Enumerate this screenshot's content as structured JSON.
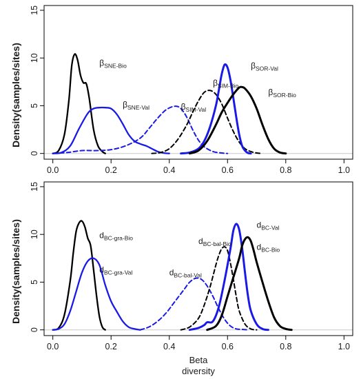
{
  "figure": {
    "ylabel": "Density(samples/sites)",
    "xlabel_line1": "Beta",
    "xlabel_line2": "diversity"
  },
  "chart_data": [
    {
      "type": "line",
      "panel": "top",
      "xlim": [
        -0.03,
        1.03
      ],
      "ylim": [
        -0.6,
        15.5
      ],
      "xticks": [
        "0.0",
        "0.2",
        "0.4",
        "0.6",
        "0.8",
        "1.0"
      ],
      "xtick_values": [
        0.0,
        0.2,
        0.4,
        0.6,
        0.8,
        1.0
      ],
      "yticks": [
        "0",
        "5",
        "10",
        "15"
      ],
      "ytick_values": [
        0,
        5,
        10,
        15
      ],
      "grid": false,
      "baseline": 0,
      "series": [
        {
          "name": "βSNE-Bio",
          "label_base": "β",
          "label_sub": "SNE-Bio",
          "color": "#000000",
          "dash": "solid",
          "width": 2.3,
          "x": [
            0.0,
            0.02,
            0.04,
            0.055,
            0.065,
            0.075,
            0.085,
            0.095,
            0.105,
            0.115,
            0.125,
            0.14,
            0.155,
            0.17,
            0.18
          ],
          "y": [
            0,
            0.3,
            2.0,
            5.5,
            9.2,
            10.4,
            9.8,
            8.2,
            7.4,
            7.3,
            5.8,
            2.5,
            0.8,
            0.2,
            0
          ]
        },
        {
          "name": "βSNE-Val",
          "label_base": "β",
          "label_sub": "SNE-Val",
          "color": "#1a1ae6",
          "dash": "solid",
          "width": 2.3,
          "x": [
            0.0,
            0.03,
            0.06,
            0.09,
            0.12,
            0.14,
            0.16,
            0.18,
            0.2,
            0.22,
            0.24,
            0.26,
            0.28,
            0.3,
            0.32,
            0.34,
            0.36,
            0.38,
            0.4
          ],
          "y": [
            0,
            0.1,
            0.8,
            2.6,
            4.2,
            4.7,
            4.8,
            4.8,
            4.7,
            4.1,
            3.1,
            2.0,
            1.3,
            1.0,
            0.8,
            0.5,
            0.2,
            0.05,
            0
          ]
        },
        {
          "name": "βSIM-Val",
          "label_base": "β",
          "label_sub": "SIM-Val",
          "color": "#1a1ae6",
          "dash": "dashed",
          "width": 2.0,
          "x": [
            0.0,
            0.05,
            0.1,
            0.15,
            0.2,
            0.25,
            0.3,
            0.33,
            0.36,
            0.39,
            0.42,
            0.44,
            0.46,
            0.48,
            0.5,
            0.52,
            0.55,
            0.58,
            0.6
          ],
          "y": [
            0,
            0.1,
            0.3,
            0.3,
            0.4,
            0.8,
            1.6,
            2.6,
            3.7,
            4.6,
            4.95,
            4.7,
            3.8,
            2.5,
            1.4,
            0.7,
            0.2,
            0.05,
            0
          ]
        },
        {
          "name": "βSIM-Bio",
          "label_base": "β",
          "label_sub": "SIM-Bio",
          "color": "#000000",
          "dash": "dashed",
          "width": 2.0,
          "x": [
            0.34,
            0.37,
            0.4,
            0.43,
            0.46,
            0.48,
            0.5,
            0.52,
            0.54,
            0.56,
            0.58,
            0.6,
            0.62,
            0.64,
            0.66,
            0.68,
            0.7,
            0.72
          ],
          "y": [
            0,
            0.1,
            0.5,
            1.5,
            3.0,
            4.3,
            5.5,
            6.4,
            6.6,
            6.2,
            5.2,
            3.7,
            2.3,
            1.2,
            0.5,
            0.2,
            0.05,
            0
          ]
        },
        {
          "name": "βSOR-Val",
          "label_base": "β",
          "label_sub": "SOR-Val",
          "color": "#1a1ae6",
          "dash": "solid",
          "width": 3.0,
          "x": [
            0.44,
            0.47,
            0.5,
            0.52,
            0.54,
            0.56,
            0.57,
            0.58,
            0.59,
            0.6,
            0.61,
            0.62,
            0.63,
            0.64,
            0.65,
            0.66,
            0.67,
            0.68
          ],
          "y": [
            0,
            0.1,
            0.5,
            1.3,
            2.8,
            5.0,
            6.6,
            8.3,
            9.3,
            9.0,
            7.7,
            5.8,
            3.8,
            2.0,
            0.8,
            0.3,
            0.05,
            0
          ]
        },
        {
          "name": "βSOR-Bio",
          "label_base": "β",
          "label_sub": "SOR-Bio",
          "color": "#000000",
          "dash": "solid",
          "width": 3.0,
          "x": [
            0.47,
            0.5,
            0.53,
            0.56,
            0.58,
            0.6,
            0.62,
            0.64,
            0.65,
            0.66,
            0.68,
            0.7,
            0.72,
            0.74,
            0.76,
            0.78,
            0.8
          ],
          "y": [
            0,
            0.3,
            1.3,
            3.0,
            4.3,
            5.3,
            6.2,
            6.9,
            6.95,
            6.8,
            6.0,
            4.7,
            3.0,
            1.5,
            0.5,
            0.1,
            0
          ]
        }
      ],
      "annotations": [
        {
          "series": "βSNE-Bio",
          "x": 0.16,
          "y": 9.2
        },
        {
          "series": "βSNE-Val",
          "x": 0.24,
          "y": 4.8
        },
        {
          "series": "βSIM-Val",
          "x": 0.44,
          "y": 4.6
        },
        {
          "series": "βSIM-Bio",
          "x": 0.55,
          "y": 7.1
        },
        {
          "series": "βSOR-Val",
          "x": 0.68,
          "y": 8.9
        },
        {
          "series": "βSOR-Bio",
          "x": 0.74,
          "y": 6.1
        }
      ]
    },
    {
      "type": "line",
      "panel": "bottom",
      "xlim": [
        -0.03,
        1.03
      ],
      "ylim": [
        -0.6,
        15.5
      ],
      "xticks": [
        "0.0",
        "0.2",
        "0.4",
        "0.6",
        "0.8",
        "1.0"
      ],
      "xtick_values": [
        0.0,
        0.2,
        0.4,
        0.6,
        0.8,
        1.0
      ],
      "yticks": [
        "0",
        "5",
        "10",
        "15"
      ],
      "ytick_values": [
        0,
        5,
        10,
        15
      ],
      "grid": false,
      "baseline": 0,
      "series": [
        {
          "name": "dBC-gra-Bio",
          "label_base": "d",
          "label_sub": "BC-gra-Bio",
          "color": "#000000",
          "dash": "solid",
          "width": 2.3,
          "x": [
            0.0,
            0.02,
            0.04,
            0.06,
            0.07,
            0.08,
            0.09,
            0.1,
            0.11,
            0.12,
            0.13,
            0.14,
            0.15,
            0.16,
            0.17,
            0.18
          ],
          "y": [
            0,
            0.2,
            1.6,
            5.2,
            8.0,
            10.3,
            11.2,
            11.4,
            10.8,
            9.6,
            8.8,
            6.3,
            3.6,
            1.4,
            0.3,
            0
          ]
        },
        {
          "name": "dBC-gra-Val",
          "label_base": "d",
          "label_sub": "BC-gra-Val",
          "color": "#1a1ae6",
          "dash": "solid",
          "width": 2.3,
          "x": [
            0.0,
            0.02,
            0.04,
            0.06,
            0.08,
            0.1,
            0.12,
            0.14,
            0.16,
            0.18,
            0.2,
            0.22,
            0.24,
            0.26,
            0.28,
            0.3
          ],
          "y": [
            0,
            0.1,
            0.6,
            2.0,
            4.0,
            6.0,
            7.2,
            7.5,
            6.8,
            4.7,
            3.0,
            1.9,
            0.9,
            0.3,
            0.1,
            0
          ]
        },
        {
          "name": "dBC-bal-Val",
          "label_base": "d",
          "label_sub": "BC-bal-Val",
          "color": "#1a1ae6",
          "dash": "dashed",
          "width": 2.0,
          "x": [
            0.3,
            0.33,
            0.36,
            0.39,
            0.42,
            0.45,
            0.47,
            0.49,
            0.51,
            0.53,
            0.55,
            0.57,
            0.59,
            0.61,
            0.63,
            0.65,
            0.67
          ],
          "y": [
            0,
            0.3,
            0.9,
            1.8,
            3.0,
            4.2,
            5.0,
            5.4,
            5.3,
            4.6,
            3.5,
            2.2,
            1.1,
            0.4,
            0.1,
            0.05,
            0
          ]
        },
        {
          "name": "dBC-bal-Bio",
          "label_base": "d",
          "label_sub": "BC-bal-Bio",
          "color": "#000000",
          "dash": "dashed",
          "width": 2.0,
          "x": [
            0.44,
            0.47,
            0.5,
            0.52,
            0.54,
            0.56,
            0.57,
            0.58,
            0.59,
            0.6,
            0.61,
            0.62,
            0.63,
            0.64,
            0.66,
            0.68,
            0.7
          ],
          "y": [
            0,
            0.3,
            1.2,
            2.6,
            4.5,
            6.8,
            7.8,
            8.5,
            8.7,
            8.3,
            7.0,
            5.3,
            3.5,
            2.0,
            0.6,
            0.1,
            0
          ]
        },
        {
          "name": "dBC-Val",
          "label_base": "d",
          "label_sub": "BC-Val",
          "color": "#1a1ae6",
          "dash": "solid",
          "width": 3.0,
          "x": [
            0.47,
            0.5,
            0.52,
            0.53,
            0.55,
            0.57,
            0.59,
            0.61,
            0.62,
            0.63,
            0.64,
            0.65,
            0.66,
            0.67,
            0.68,
            0.7,
            0.72,
            0.74
          ],
          "y": [
            0,
            0.2,
            0.5,
            0.8,
            0.9,
            2.4,
            5.2,
            8.5,
            10.4,
            11.1,
            10.5,
            8.6,
            6.0,
            3.6,
            2.0,
            0.6,
            0.1,
            0
          ]
        },
        {
          "name": "dBC-Bio",
          "label_base": "d",
          "label_sub": "BC-Bio",
          "color": "#000000",
          "dash": "solid",
          "width": 3.0,
          "x": [
            0.53,
            0.56,
            0.58,
            0.6,
            0.62,
            0.64,
            0.65,
            0.66,
            0.67,
            0.68,
            0.69,
            0.7,
            0.72,
            0.74,
            0.76,
            0.78,
            0.8,
            0.82
          ],
          "y": [
            0,
            0.4,
            1.5,
            3.5,
            5.5,
            7.5,
            8.8,
            9.5,
            9.7,
            9.3,
            8.3,
            7.1,
            5.0,
            3.0,
            1.3,
            0.4,
            0.1,
            0
          ]
        }
      ],
      "annotations": [
        {
          "series": "dBC-gra-Bio",
          "x": 0.16,
          "y": 9.6
        },
        {
          "series": "dBC-gra-Val",
          "x": 0.16,
          "y": 6.0
        },
        {
          "series": "dBC-bal-Val",
          "x": 0.4,
          "y": 5.7
        },
        {
          "series": "dBC-bal-Bio",
          "x": 0.5,
          "y": 9.0
        },
        {
          "series": "dBC-Val",
          "x": 0.7,
          "y": 10.7
        },
        {
          "series": "dBC-Bio",
          "x": 0.7,
          "y": 8.4
        }
      ]
    }
  ]
}
